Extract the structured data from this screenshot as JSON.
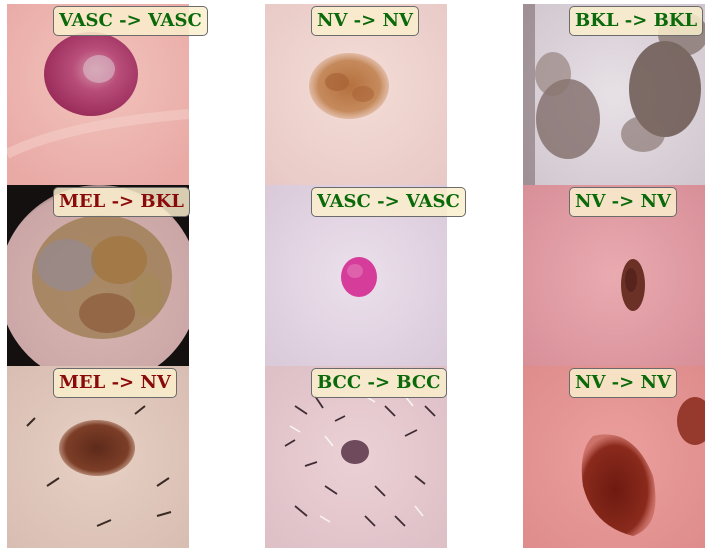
{
  "colors": {
    "correct": "#0a6a0a",
    "incorrect": "#8a0a0a",
    "label_bg": "#faeecd"
  },
  "grid": [
    {
      "label": "VASC -> VASC",
      "status": "correct"
    },
    {
      "label": "NV -> NV",
      "status": "correct"
    },
    {
      "label": "BKL -> BKL",
      "status": "correct"
    },
    {
      "label": "MEL -> BKL",
      "status": "incorrect"
    },
    {
      "label": "VASC -> VASC",
      "status": "correct"
    },
    {
      "label": "NV -> NV",
      "status": "correct"
    },
    {
      "label": "MEL -> NV",
      "status": "incorrect"
    },
    {
      "label": "BCC -> BCC",
      "status": "correct"
    },
    {
      "label": "NV -> NV",
      "status": "correct"
    }
  ]
}
